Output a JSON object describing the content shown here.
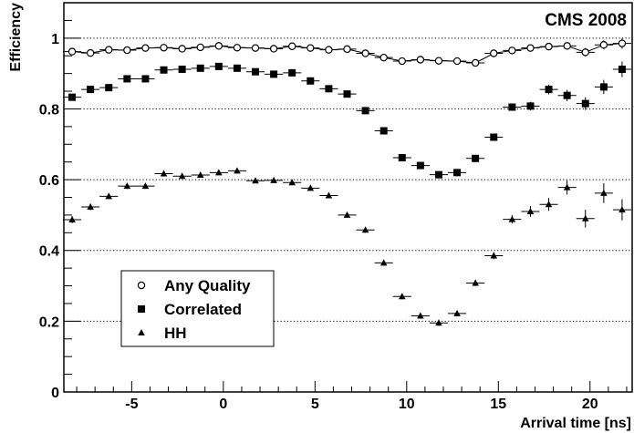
{
  "chart_data": {
    "type": "scatter",
    "title": "CMS 2008",
    "xlabel": "Arrival time [ns]",
    "ylabel": "Efficiency",
    "xlim": [
      -8.7,
      22.3
    ],
    "ylim": [
      0,
      1.1
    ],
    "x_major_ticks": [
      -5,
      0,
      5,
      10,
      15,
      20
    ],
    "y_major_ticks": [
      0,
      0.2,
      0.4,
      0.6,
      0.8,
      1
    ],
    "x_tick_labels": [
      "-5",
      "0",
      "5",
      "10",
      "15",
      "20"
    ],
    "y_tick_labels": [
      "0",
      "0.2",
      "0.4",
      "0.6",
      "0.8",
      "1"
    ],
    "gridlines_y": [
      0.2,
      0.4,
      0.6,
      0.8,
      1.0
    ],
    "grid": "dotted horizontal at major y ticks",
    "legend_position": "bottom-left",
    "series": [
      {
        "name": "Any Quality",
        "marker": "open-circle",
        "line": true,
        "x": [
          -8.25,
          -7.25,
          -6.25,
          -5.25,
          -4.25,
          -3.25,
          -2.25,
          -1.25,
          -0.25,
          0.75,
          1.75,
          2.75,
          3.75,
          4.75,
          5.75,
          6.75,
          7.75,
          8.75,
          9.75,
          10.75,
          11.75,
          12.75,
          13.75,
          14.75,
          15.75,
          16.75,
          17.75,
          18.75,
          19.75,
          20.75,
          21.75
        ],
        "y": [
          0.962,
          0.958,
          0.967,
          0.966,
          0.972,
          0.973,
          0.97,
          0.974,
          0.978,
          0.973,
          0.972,
          0.97,
          0.977,
          0.972,
          0.967,
          0.969,
          0.957,
          0.945,
          0.935,
          0.939,
          0.936,
          0.935,
          0.93,
          0.957,
          0.965,
          0.972,
          0.976,
          0.978,
          0.96,
          0.981,
          0.985
        ],
        "y_err": [
          0.005,
          0.005,
          0.005,
          0.005,
          0.005,
          0.005,
          0.005,
          0.005,
          0.005,
          0.005,
          0.005,
          0.005,
          0.005,
          0.005,
          0.005,
          0.005,
          0.005,
          0.005,
          0.005,
          0.005,
          0.005,
          0.005,
          0.005,
          0.006,
          0.006,
          0.007,
          0.008,
          0.01,
          0.012,
          0.013,
          0.015
        ]
      },
      {
        "name": "Correlated",
        "marker": "filled-square",
        "line": false,
        "x": [
          -8.25,
          -7.25,
          -6.25,
          -5.25,
          -4.25,
          -3.25,
          -2.25,
          -1.25,
          -0.25,
          0.75,
          1.75,
          2.75,
          3.75,
          4.75,
          5.75,
          6.75,
          7.75,
          8.75,
          9.75,
          10.75,
          11.75,
          12.75,
          13.75,
          14.75,
          15.75,
          16.75,
          17.75,
          18.75,
          19.75,
          20.75,
          21.75
        ],
        "y": [
          0.833,
          0.855,
          0.86,
          0.885,
          0.885,
          0.91,
          0.912,
          0.915,
          0.92,
          0.915,
          0.905,
          0.898,
          0.902,
          0.879,
          0.857,
          0.842,
          0.795,
          0.738,
          0.662,
          0.64,
          0.614,
          0.62,
          0.66,
          0.72,
          0.805,
          0.808,
          0.855,
          0.838,
          0.815,
          0.862,
          0.912
        ],
        "y_err": [
          0.007,
          0.007,
          0.007,
          0.007,
          0.007,
          0.007,
          0.007,
          0.007,
          0.007,
          0.007,
          0.007,
          0.007,
          0.007,
          0.007,
          0.007,
          0.007,
          0.008,
          0.008,
          0.008,
          0.008,
          0.008,
          0.008,
          0.009,
          0.009,
          0.01,
          0.012,
          0.014,
          0.016,
          0.018,
          0.02,
          0.022
        ]
      },
      {
        "name": "HH",
        "marker": "filled-triangle",
        "line": false,
        "x": [
          -8.25,
          -7.25,
          -6.25,
          -5.25,
          -4.25,
          -3.25,
          -2.25,
          -1.25,
          -0.25,
          0.75,
          1.75,
          2.75,
          3.75,
          4.75,
          5.75,
          6.75,
          7.75,
          8.75,
          9.75,
          10.75,
          11.75,
          12.75,
          13.75,
          14.75,
          15.75,
          16.75,
          17.75,
          18.75,
          19.75,
          20.75,
          21.75
        ],
        "y": [
          0.487,
          0.523,
          0.553,
          0.582,
          0.582,
          0.617,
          0.61,
          0.613,
          0.62,
          0.625,
          0.597,
          0.598,
          0.592,
          0.576,
          0.555,
          0.5,
          0.458,
          0.365,
          0.27,
          0.215,
          0.195,
          0.222,
          0.308,
          0.385,
          0.488,
          0.51,
          0.53,
          0.578,
          0.49,
          0.562,
          0.515
        ],
        "y_err": [
          0.01,
          0.009,
          0.008,
          0.008,
          0.008,
          0.007,
          0.007,
          0.007,
          0.007,
          0.007,
          0.007,
          0.007,
          0.007,
          0.007,
          0.007,
          0.008,
          0.008,
          0.008,
          0.008,
          0.008,
          0.008,
          0.008,
          0.009,
          0.01,
          0.012,
          0.015,
          0.018,
          0.02,
          0.025,
          0.028,
          0.03
        ]
      }
    ]
  }
}
